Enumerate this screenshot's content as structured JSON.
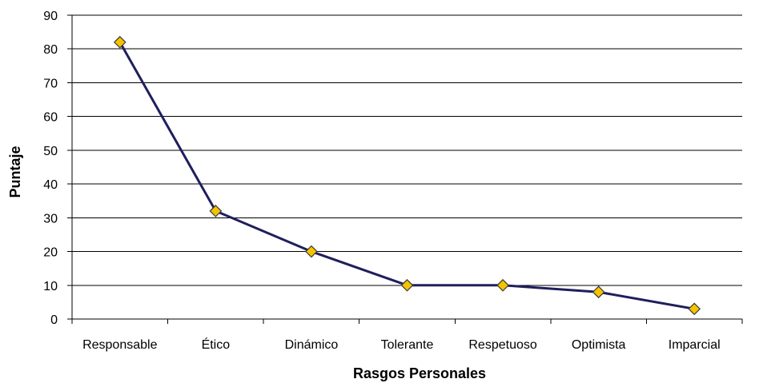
{
  "chart_data": {
    "type": "line",
    "categories": [
      "Responsable",
      "Ético",
      "Dinámico",
      "Tolerante",
      "Respetuoso",
      "Optimista",
      "Imparcial"
    ],
    "series": [
      {
        "values": [
          82,
          32,
          20,
          10,
          10,
          8,
          3
        ]
      }
    ],
    "xlabel": "Rasgos Personales",
    "ylabel": "Puntaje",
    "ylim": [
      0,
      90
    ],
    "yticks": [
      0,
      10,
      20,
      30,
      40,
      50,
      60,
      70,
      80,
      90
    ],
    "grid": true,
    "legend": "none",
    "colors": {
      "line": "#1f1f5c",
      "marker_fill": "#f5c400",
      "marker_stroke": "#3a3a3a",
      "grid": "#000000"
    }
  }
}
